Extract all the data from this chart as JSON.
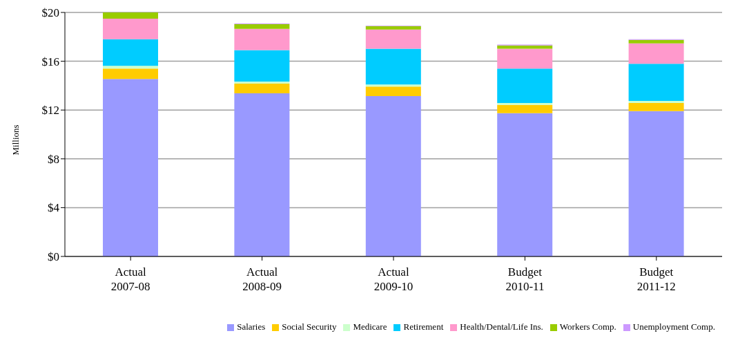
{
  "chart_data": {
    "type": "bar",
    "stacked": true,
    "ylabel": "Millions",
    "categories": [
      "Actual\n2007-08",
      "Actual\n2008-09",
      "Actual\n2009-10",
      "Budget\n2010-11",
      "Budget\n2011-12"
    ],
    "series": [
      {
        "name": "Salaries",
        "color": "#9999ff",
        "values": [
          14.55,
          13.37,
          13.15,
          11.74,
          11.91
        ]
      },
      {
        "name": "Social Security",
        "color": "#ffcc00",
        "values": [
          0.84,
          0.79,
          0.78,
          0.68,
          0.67
        ]
      },
      {
        "name": "Medicare",
        "color": "#ccffcc",
        "values": [
          0.23,
          0.17,
          0.17,
          0.16,
          0.17
        ]
      },
      {
        "name": "Retirement",
        "color": "#00ccff",
        "values": [
          2.19,
          2.58,
          2.92,
          2.81,
          3.04
        ]
      },
      {
        "name": "Health/Dental/Life Ins.",
        "color": "#ff99cc",
        "values": [
          1.68,
          1.74,
          1.58,
          1.63,
          1.68
        ]
      },
      {
        "name": "Workers Comp.",
        "color": "#99cc00",
        "values": [
          0.51,
          0.39,
          0.28,
          0.28,
          0.28
        ]
      },
      {
        "name": "Unemployment Comp.",
        "color": "#cc99ff",
        "values": [
          0,
          0.06,
          0.05,
          0.06,
          0.06
        ]
      }
    ],
    "ylim": [
      0,
      20
    ],
    "yticks": [
      {
        "value": 0,
        "label": "$0"
      },
      {
        "value": 4,
        "label": "$4"
      },
      {
        "value": 8,
        "label": "$8"
      },
      {
        "value": 12,
        "label": "$12"
      },
      {
        "value": 16,
        "label": "$16"
      },
      {
        "value": 20,
        "label": "$20"
      }
    ],
    "grid": "y",
    "legend": "bottom right"
  }
}
